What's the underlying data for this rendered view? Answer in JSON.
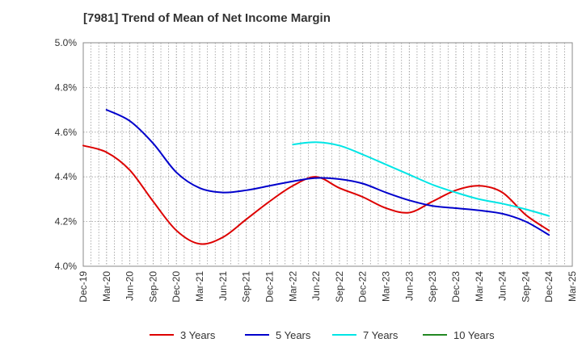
{
  "chart_data": {
    "type": "line",
    "title": "[7981]  Trend of Mean of Net Income Margin",
    "xlabel": "",
    "ylabel": "",
    "y_tick_labels": [
      "4.0%",
      "4.2%",
      "4.4%",
      "4.6%",
      "4.8%",
      "5.0%"
    ],
    "y_ticks": [
      4.0,
      4.2,
      4.4,
      4.6,
      4.8,
      5.0
    ],
    "ylim": [
      4.0,
      5.0
    ],
    "x_tick_labels": [
      "Dec-19",
      "Mar-20",
      "Jun-20",
      "Sep-20",
      "Dec-20",
      "Mar-21",
      "Jun-21",
      "Sep-21",
      "Dec-21",
      "Mar-22",
      "Jun-22",
      "Sep-22",
      "Dec-22",
      "Mar-23",
      "Jun-23",
      "Sep-23",
      "Dec-23",
      "Mar-24",
      "Jun-24",
      "Sep-24",
      "Dec-24",
      "Mar-25"
    ],
    "grid": true,
    "legend_position": "bottom",
    "series": [
      {
        "name": "3 Years",
        "color": "#dd0000",
        "x": [
          "Dec-19",
          "Mar-20",
          "Jun-20",
          "Sep-20",
          "Dec-20",
          "Mar-21",
          "Jun-21",
          "Sep-21",
          "Dec-21",
          "Mar-22",
          "Jun-22",
          "Sep-22",
          "Dec-22",
          "Mar-23",
          "Jun-23",
          "Sep-23",
          "Dec-23",
          "Mar-24",
          "Jun-24",
          "Sep-24",
          "Dec-24"
        ],
        "values": [
          4.54,
          4.51,
          4.43,
          4.29,
          4.16,
          4.1,
          4.13,
          4.21,
          4.29,
          4.36,
          4.4,
          4.35,
          4.31,
          4.26,
          4.24,
          4.29,
          4.34,
          4.36,
          4.33,
          4.23,
          4.16
        ]
      },
      {
        "name": "5 Years",
        "color": "#0000cc",
        "x": [
          "Mar-20",
          "Jun-20",
          "Sep-20",
          "Dec-20",
          "Mar-21",
          "Jun-21",
          "Sep-21",
          "Dec-21",
          "Mar-22",
          "Jun-22",
          "Sep-22",
          "Dec-22",
          "Mar-23",
          "Jun-23",
          "Sep-23",
          "Dec-23",
          "Mar-24",
          "Jun-24",
          "Sep-24",
          "Dec-24"
        ],
        "values": [
          4.7,
          4.65,
          4.55,
          4.42,
          4.35,
          4.33,
          4.34,
          4.36,
          4.38,
          4.395,
          4.39,
          4.37,
          4.33,
          4.295,
          4.27,
          4.26,
          4.25,
          4.235,
          4.2,
          4.14
        ]
      },
      {
        "name": "7 Years",
        "color": "#00e5e5",
        "x": [
          "Mar-22",
          "Jun-22",
          "Sep-22",
          "Dec-22",
          "Mar-23",
          "Jun-23",
          "Sep-23",
          "Dec-23",
          "Mar-24",
          "Jun-24",
          "Sep-24",
          "Dec-24"
        ],
        "values": [
          4.545,
          4.555,
          4.54,
          4.5,
          4.455,
          4.41,
          4.365,
          4.33,
          4.3,
          4.28,
          4.255,
          4.225
        ]
      },
      {
        "name": "10 Years",
        "color": "#228822",
        "x": [],
        "values": []
      }
    ]
  }
}
